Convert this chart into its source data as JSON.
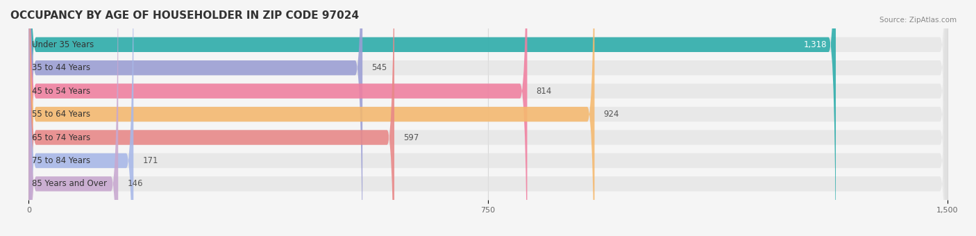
{
  "title": "OCCUPANCY BY AGE OF HOUSEHOLDER IN ZIP CODE 97024",
  "source": "Source: ZipAtlas.com",
  "categories": [
    "Under 35 Years",
    "35 to 44 Years",
    "45 to 54 Years",
    "55 to 64 Years",
    "65 to 74 Years",
    "75 to 84 Years",
    "85 Years and Over"
  ],
  "values": [
    1318,
    545,
    814,
    924,
    597,
    171,
    146
  ],
  "bar_colors": [
    "#2aacaa",
    "#9b9ed4",
    "#f07fa0",
    "#f5b96e",
    "#e88888",
    "#a8b8e8",
    "#c8a8d0"
  ],
  "bar_bg_color": "#e8e8e8",
  "xlim": [
    0,
    1500
  ],
  "xticks": [
    0,
    750,
    1500
  ],
  "title_fontsize": 11,
  "label_fontsize": 8.5,
  "value_fontsize": 8.5,
  "background_color": "#f5f5f5",
  "bar_height": 0.62,
  "bar_bg_alpha": 0.5
}
